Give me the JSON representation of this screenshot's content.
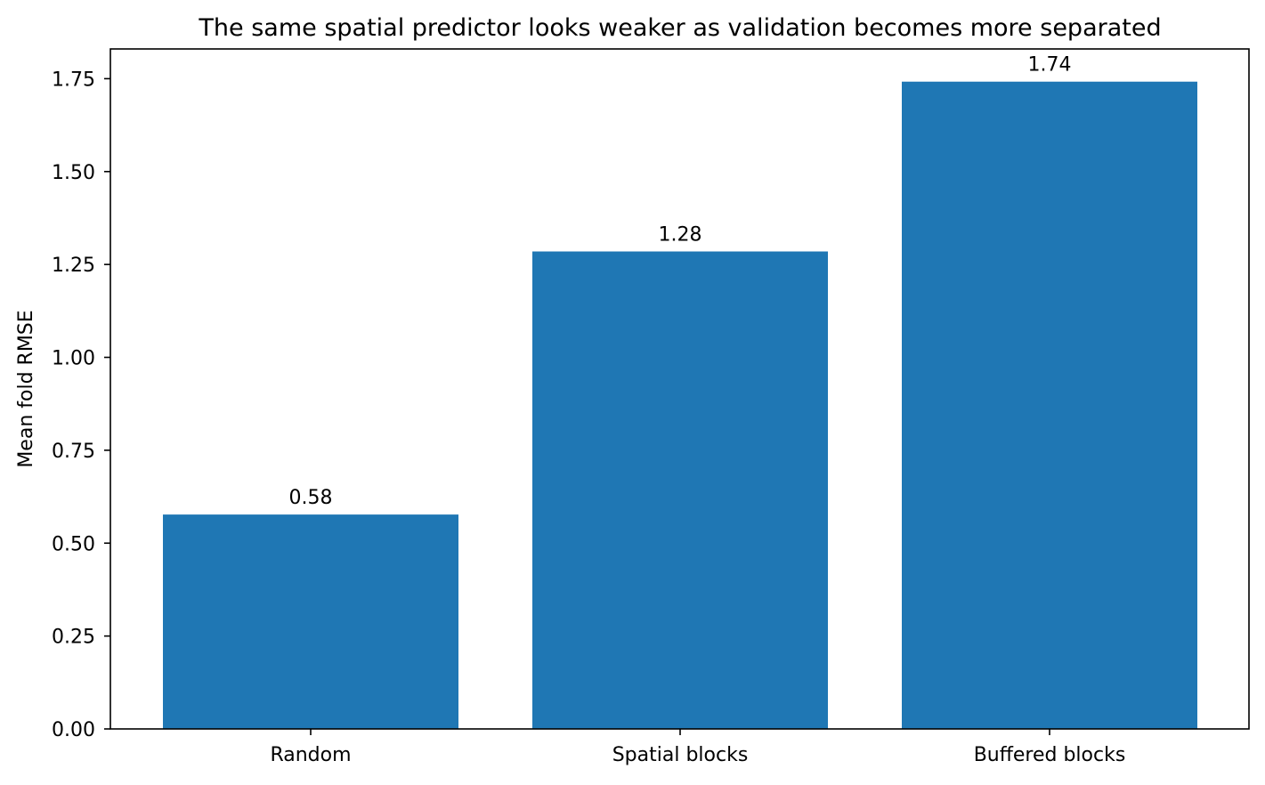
{
  "chart_data": {
    "type": "bar",
    "title": "The same spatial predictor looks weaker as validation becomes more separated",
    "xlabel": "",
    "ylabel": "Mean fold RMSE",
    "categories": [
      "Random",
      "Spatial blocks",
      "Buffered blocks"
    ],
    "values": [
      0.577,
      1.285,
      1.742
    ],
    "value_labels": [
      "0.58",
      "1.28",
      "1.74"
    ],
    "ylim": [
      0,
      1.83
    ],
    "y_ticks": [
      0.0,
      0.25,
      0.5,
      0.75,
      1.0,
      1.25,
      1.5,
      1.75
    ],
    "y_tick_labels": [
      "0.00",
      "0.25",
      "0.50",
      "0.75",
      "1.00",
      "1.25",
      "1.50",
      "1.75"
    ],
    "bar_color": "#1f77b4",
    "grid": false,
    "legend": "none"
  }
}
